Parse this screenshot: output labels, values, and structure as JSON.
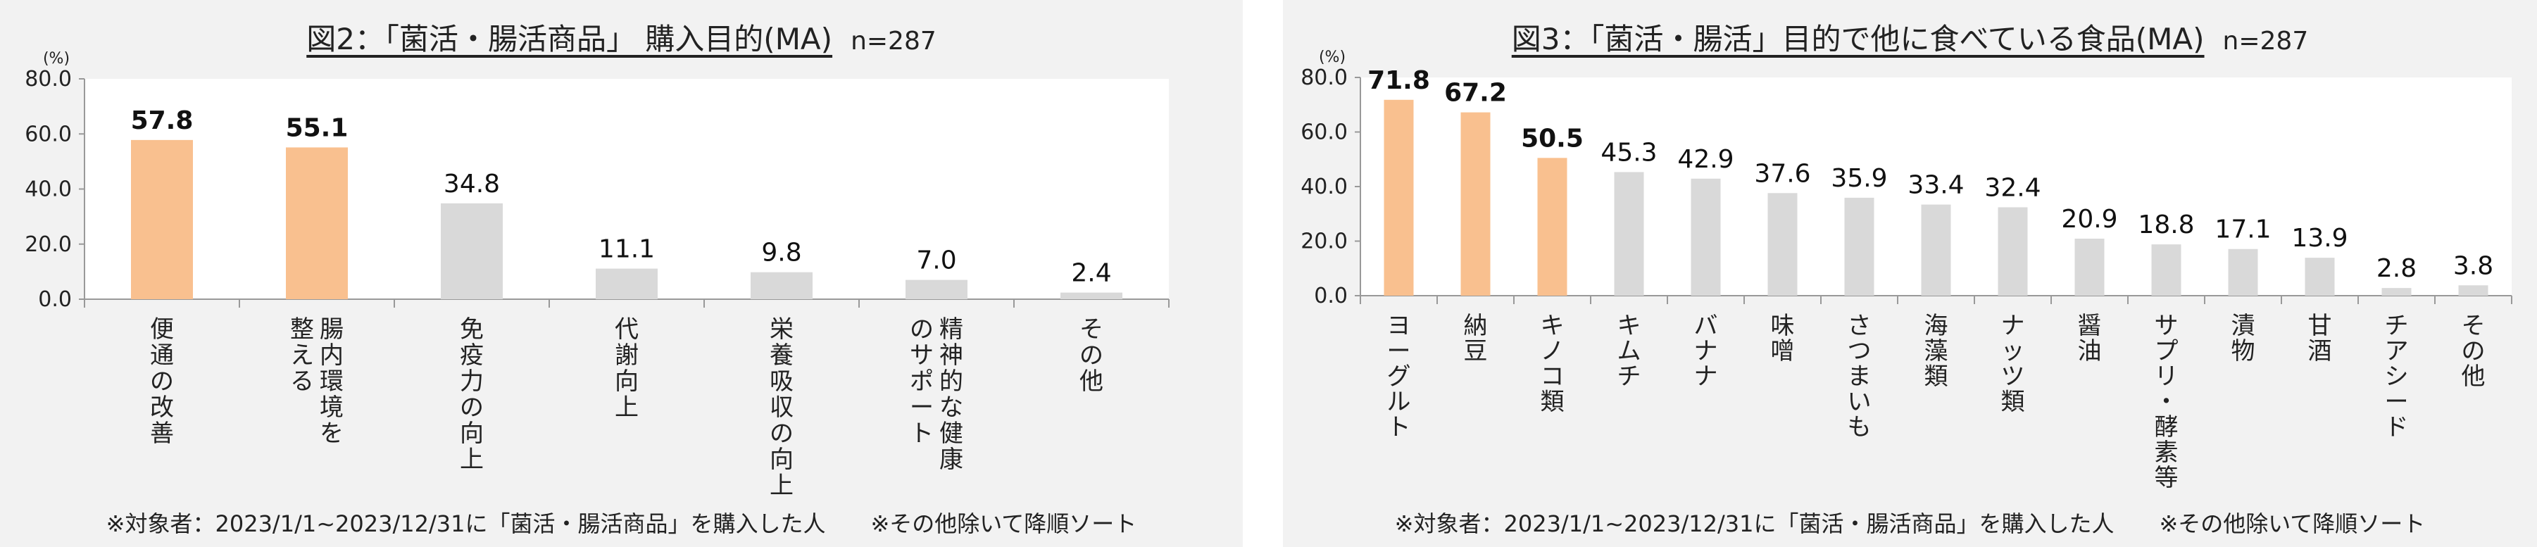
{
  "panels": [
    {
      "title": "図2：「菌活・腸活商品」 購入目的(MA)",
      "n": "n=287",
      "footnote": "※対象者：2023/1/1~2023/12/31に「菌活・腸活商品」を購入した人　　※その他除いて降順ソート"
    },
    {
      "title": "図3：「菌活・腸活」目的で他に食べている食品(MA)",
      "n": "n=287",
      "footnote": "※対象者：2023/1/1~2023/12/31に「菌活・腸活商品」を購入した人　　※その他除いて降順ソート"
    }
  ],
  "colors": {
    "highlight": "#f9c08f",
    "normal": "#d9d9d9",
    "axis": "#999999",
    "plot_bg": "#ffffff"
  },
  "chart_data": [
    {
      "type": "bar",
      "ylabel": "(%)",
      "ylim": [
        0,
        80
      ],
      "yticks": [
        "0.0",
        "20.0",
        "40.0",
        "60.0",
        "80.0"
      ],
      "categories": [
        [
          "便通の改善"
        ],
        [
          "腸内環境を",
          "整える"
        ],
        [
          "免疫力の向上"
        ],
        [
          "代謝向上"
        ],
        [
          "栄養吸収の向上"
        ],
        [
          "精神的な健康",
          "のサポート"
        ],
        [
          "その他"
        ]
      ],
      "values": [
        57.8,
        55.1,
        34.8,
        11.1,
        9.8,
        7.0,
        2.4
      ],
      "value_labels": [
        "57.8",
        "55.1",
        "34.8",
        "11.1",
        "9.8",
        "7.0",
        "2.4"
      ],
      "highlight": [
        true,
        true,
        false,
        false,
        false,
        false,
        false
      ],
      "grid": false
    },
    {
      "type": "bar",
      "ylabel": "(%)",
      "ylim": [
        0,
        80
      ],
      "yticks": [
        "0.0",
        "20.0",
        "40.0",
        "60.0",
        "80.0"
      ],
      "categories": [
        [
          "ヨーグルト"
        ],
        [
          "納豆"
        ],
        [
          "キノコ類"
        ],
        [
          "キムチ"
        ],
        [
          "バナナ"
        ],
        [
          "味噌"
        ],
        [
          "さつまいも"
        ],
        [
          "海藻類"
        ],
        [
          "ナッツ類"
        ],
        [
          "醤油"
        ],
        [
          "サプリ・酵素等"
        ],
        [
          "漬物"
        ],
        [
          "甘酒"
        ],
        [
          "チアシード"
        ],
        [
          "その他"
        ]
      ],
      "values": [
        71.8,
        67.2,
        50.5,
        45.3,
        42.9,
        37.6,
        35.9,
        33.4,
        32.4,
        20.9,
        18.8,
        17.1,
        13.9,
        2.8,
        3.8
      ],
      "value_labels": [
        "71.8",
        "67.2",
        "50.5",
        "45.3",
        "42.9",
        "37.6",
        "35.9",
        "33.4",
        "32.4",
        "20.9",
        "18.8",
        "17.1",
        "13.9",
        "2.8",
        "3.8"
      ],
      "highlight": [
        true,
        true,
        true,
        false,
        false,
        false,
        false,
        false,
        false,
        false,
        false,
        false,
        false,
        false,
        false
      ],
      "grid": false
    }
  ]
}
